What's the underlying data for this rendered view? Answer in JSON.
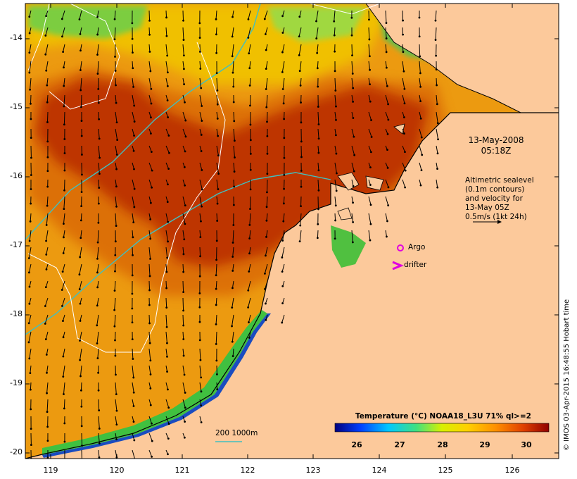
{
  "map": {
    "date": "13-May-2008",
    "time": "05:18Z",
    "legend": {
      "line1": "Altimetric sealevel",
      "line2": "(0.1m contours)",
      "line3": "and velocity for",
      "line4": "13-May 05Z",
      "line5": "0.5m/s (1kt 24h)"
    },
    "markers": {
      "argo": "Argo",
      "drifter": "drifter"
    },
    "isobath_label": "200  1000m",
    "colorbar": {
      "title": "Temperature (°C) NOAA18_L3U 71% ql>=2",
      "ticks": [
        "26",
        "27",
        "28",
        "29",
        "30"
      ]
    },
    "credit": "© IMOS 03-Apr-2015 16:48:55 Hobart time",
    "lat_ticks": [
      "-14",
      "-15",
      "-16",
      "-17",
      "-18",
      "-19",
      "-20"
    ],
    "lon_ticks": [
      "119",
      "120",
      "121",
      "122",
      "123",
      "124",
      "125",
      "126"
    ],
    "colors": {
      "land": "#fcc99b",
      "sst_hot": "#9a1200",
      "sst_warm": "#d45600",
      "sst_mid": "#f0a500",
      "sst_cool": "#e8e000",
      "coastal_green": "#3cc040",
      "coastal_blue": "#1e5cc8",
      "isobath": "#40c0c0"
    }
  }
}
